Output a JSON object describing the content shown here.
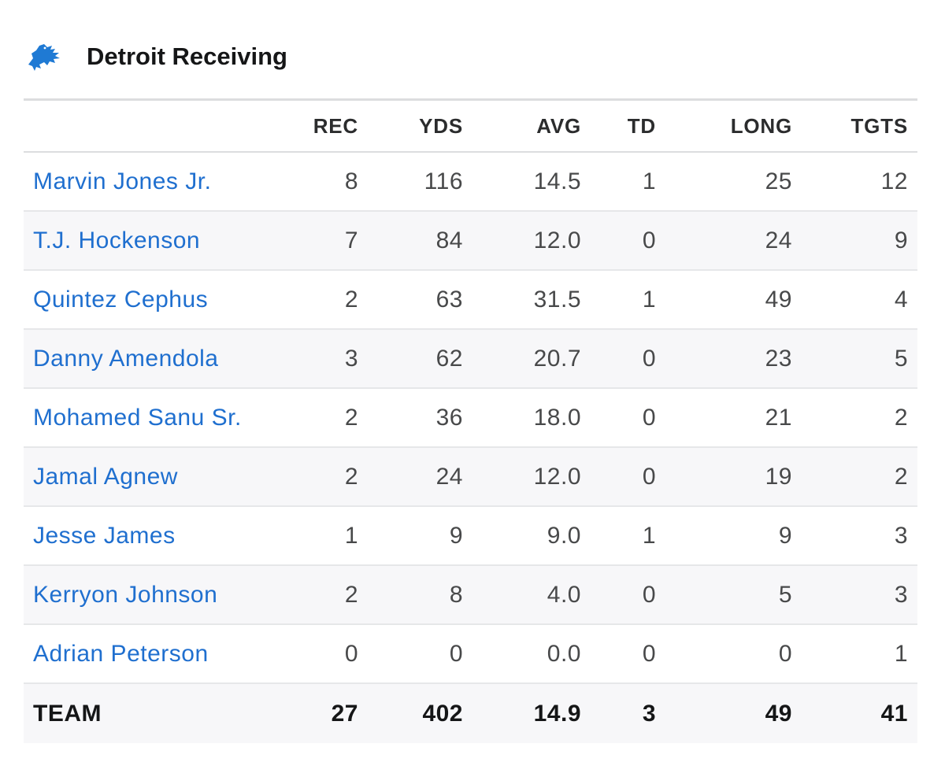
{
  "header": {
    "title": "Detroit Receiving",
    "logo_icon": "detroit-lions-logo-icon",
    "logo_color": "#1f7ad4"
  },
  "table": {
    "columns": [
      "",
      "REC",
      "YDS",
      "AVG",
      "TD",
      "LONG",
      "TGTS"
    ],
    "rows": [
      {
        "name": "Marvin Jones Jr.",
        "rec": "8",
        "yds": "116",
        "avg": "14.5",
        "td": "1",
        "long": "25",
        "tgts": "12"
      },
      {
        "name": "T.J. Hockenson",
        "rec": "7",
        "yds": "84",
        "avg": "12.0",
        "td": "0",
        "long": "24",
        "tgts": "9"
      },
      {
        "name": "Quintez Cephus",
        "rec": "2",
        "yds": "63",
        "avg": "31.5",
        "td": "1",
        "long": "49",
        "tgts": "4"
      },
      {
        "name": "Danny Amendola",
        "rec": "3",
        "yds": "62",
        "avg": "20.7",
        "td": "0",
        "long": "23",
        "tgts": "5"
      },
      {
        "name": "Mohamed Sanu Sr.",
        "rec": "2",
        "yds": "36",
        "avg": "18.0",
        "td": "0",
        "long": "21",
        "tgts": "2"
      },
      {
        "name": "Jamal Agnew",
        "rec": "2",
        "yds": "24",
        "avg": "12.0",
        "td": "0",
        "long": "19",
        "tgts": "2"
      },
      {
        "name": "Jesse James",
        "rec": "1",
        "yds": "9",
        "avg": "9.0",
        "td": "1",
        "long": "9",
        "tgts": "3"
      },
      {
        "name": "Kerryon Johnson",
        "rec": "2",
        "yds": "8",
        "avg": "4.0",
        "td": "0",
        "long": "5",
        "tgts": "3"
      },
      {
        "name": "Adrian Peterson",
        "rec": "0",
        "yds": "0",
        "avg": "0.0",
        "td": "0",
        "long": "0",
        "tgts": "1"
      }
    ],
    "team": {
      "name": "TEAM",
      "rec": "27",
      "yds": "402",
      "avg": "14.9",
      "td": "3",
      "long": "49",
      "tgts": "41"
    }
  },
  "colors": {
    "link": "#1f6fcf",
    "row_alt": "#f7f7f9",
    "text": "#48494a"
  }
}
